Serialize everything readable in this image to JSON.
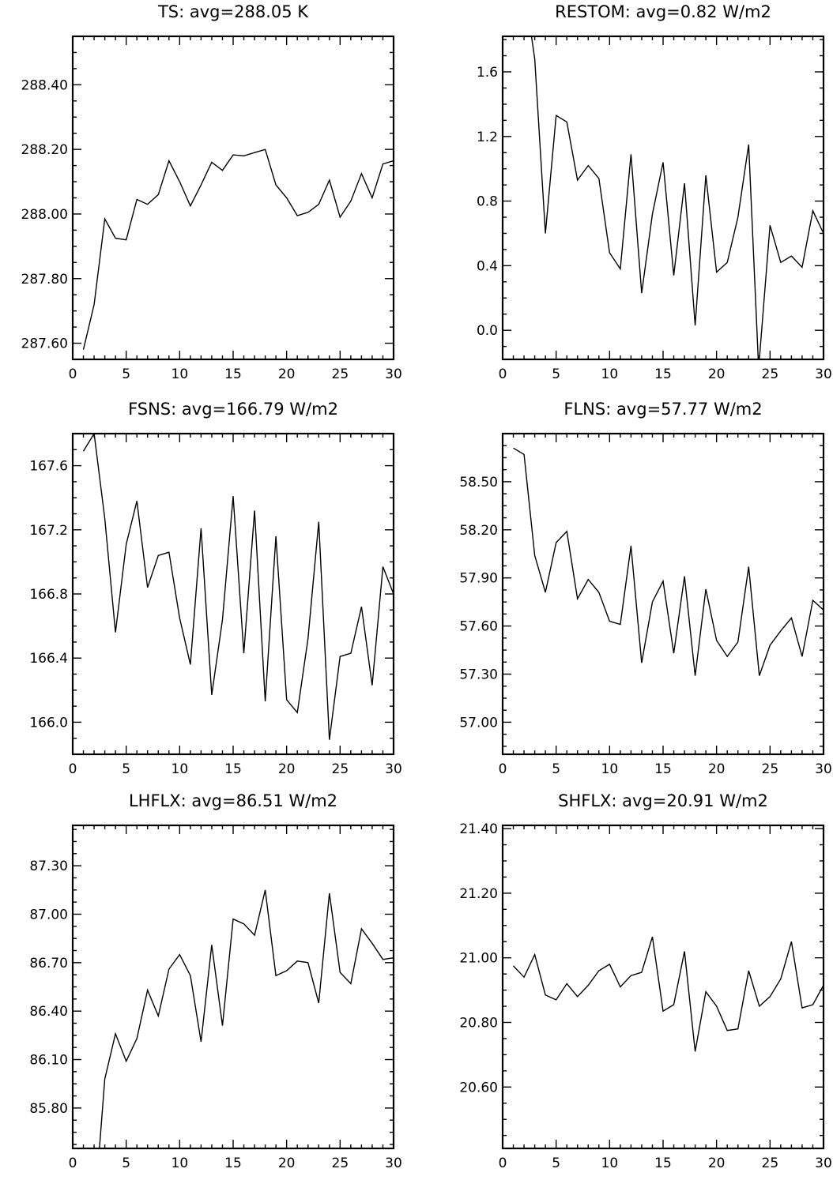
{
  "chart_data": [
    {
      "type": "line",
      "title": "TS: avg=288.05 K",
      "xlabel": "",
      "ylabel": "",
      "xlim": [
        0,
        30
      ],
      "ylim": [
        287.55,
        288.55
      ],
      "x_ticks": [
        0,
        5,
        10,
        15,
        20,
        25,
        30
      ],
      "x_tick_labels": [
        "0",
        "5",
        "10",
        "15",
        "20",
        "25",
        "30"
      ],
      "y_ticks": [
        287.6,
        287.8,
        288.0,
        288.2,
        288.4
      ],
      "y_tick_labels": [
        "287.60",
        "287.80",
        "288.00",
        "288.20",
        "288.40"
      ],
      "grid": false,
      "series": [
        {
          "x": [
            1,
            2,
            3,
            4,
            5,
            6,
            7,
            8,
            9,
            10,
            11,
            12,
            13,
            14,
            15,
            16,
            17,
            18,
            19,
            20,
            21,
            22,
            23,
            24,
            25,
            26,
            27,
            28,
            29,
            30
          ],
          "values": [
            287.58,
            287.72,
            287.985,
            287.925,
            287.92,
            288.045,
            288.03,
            288.06,
            288.165,
            288.1,
            288.025,
            288.09,
            288.16,
            288.135,
            288.183,
            288.18,
            288.19,
            288.2,
            288.09,
            288.05,
            287.995,
            288.005,
            288.03,
            288.105,
            287.99,
            288.04,
            288.125,
            288.05,
            288.155,
            288.165
          ]
        }
      ]
    },
    {
      "type": "line",
      "title": "RESTOM: avg=0.82 W/m2",
      "xlabel": "",
      "ylabel": "",
      "xlim": [
        0,
        30
      ],
      "ylim": [
        -0.18,
        1.82
      ],
      "x_ticks": [
        0,
        5,
        10,
        15,
        20,
        25,
        30
      ],
      "x_tick_labels": [
        "0",
        "5",
        "10",
        "15",
        "20",
        "25",
        "30"
      ],
      "y_ticks": [
        0.0,
        0.4,
        0.8,
        1.2,
        1.6
      ],
      "y_tick_labels": [
        "0.0",
        "0.4",
        "0.8",
        "1.2",
        "1.6"
      ],
      "grid": false,
      "series": [
        {
          "x": [
            2.7,
            3,
            4,
            5,
            6,
            7,
            8,
            9,
            10,
            11,
            12,
            13,
            14,
            15,
            16,
            17,
            18,
            19,
            20,
            21,
            22,
            23,
            23.9,
            24,
            25,
            26,
            27,
            28,
            29,
            30
          ],
          "values": [
            1.82,
            1.68,
            0.6,
            1.33,
            1.29,
            0.93,
            1.02,
            0.94,
            0.48,
            0.38,
            1.09,
            0.23,
            0.72,
            1.04,
            0.34,
            0.91,
            0.03,
            0.96,
            0.36,
            0.42,
            0.7,
            1.15,
            -0.18,
            -0.18,
            0.65,
            0.42,
            0.46,
            0.39,
            0.74,
            0.6
          ]
        }
      ]
    },
    {
      "type": "line",
      "title": "FSNS: avg=166.79 W/m2",
      "xlabel": "",
      "ylabel": "",
      "xlim": [
        0,
        30
      ],
      "ylim": [
        165.8,
        167.8
      ],
      "x_ticks": [
        0,
        5,
        10,
        15,
        20,
        25,
        30
      ],
      "x_tick_labels": [
        "0",
        "5",
        "10",
        "15",
        "20",
        "25",
        "30"
      ],
      "y_ticks": [
        166.0,
        166.4,
        166.8,
        167.2,
        167.6
      ],
      "y_tick_labels": [
        "166.0",
        "166.4",
        "166.8",
        "167.2",
        "167.6"
      ],
      "grid": false,
      "series": [
        {
          "x": [
            1,
            2,
            3,
            4,
            5,
            6,
            7,
            8,
            9,
            10,
            11,
            12,
            13,
            14,
            15,
            16,
            17,
            18,
            19,
            20,
            21,
            22,
            23,
            24,
            25,
            26,
            27,
            28,
            29,
            30
          ],
          "values": [
            167.69,
            167.8,
            167.27,
            166.56,
            167.11,
            167.38,
            166.84,
            167.04,
            167.06,
            166.65,
            166.36,
            167.21,
            166.17,
            166.64,
            167.41,
            166.43,
            167.32,
            166.13,
            167.16,
            166.14,
            166.06,
            166.52,
            167.25,
            165.89,
            166.41,
            166.43,
            166.72,
            166.23,
            166.97,
            166.8
          ]
        }
      ]
    },
    {
      "type": "line",
      "title": "FLNS: avg=57.77 W/m2",
      "xlabel": "",
      "ylabel": "",
      "xlim": [
        0,
        30
      ],
      "ylim": [
        56.8,
        58.8
      ],
      "x_ticks": [
        0,
        5,
        10,
        15,
        20,
        25,
        30
      ],
      "x_tick_labels": [
        "0",
        "5",
        "10",
        "15",
        "20",
        "25",
        "30"
      ],
      "y_ticks": [
        57.0,
        57.3,
        57.6,
        57.9,
        58.2,
        58.5
      ],
      "y_tick_labels": [
        "57.00",
        "57.30",
        "57.60",
        "57.90",
        "58.20",
        "58.50"
      ],
      "grid": false,
      "series": [
        {
          "x": [
            1,
            2,
            3,
            4,
            5,
            6,
            7,
            8,
            9,
            10,
            11,
            12,
            13,
            14,
            15,
            16,
            17,
            18,
            19,
            20,
            21,
            22,
            23,
            24,
            25,
            26,
            27,
            28,
            29,
            30
          ],
          "values": [
            58.71,
            58.67,
            58.04,
            57.81,
            58.12,
            58.19,
            57.77,
            57.89,
            57.81,
            57.63,
            57.61,
            58.1,
            57.37,
            57.75,
            57.88,
            57.43,
            57.91,
            57.29,
            57.83,
            57.51,
            57.41,
            57.5,
            57.97,
            57.29,
            57.48,
            57.57,
            57.65,
            57.41,
            57.76,
            57.7
          ]
        }
      ]
    },
    {
      "type": "line",
      "title": "LHFLX: avg=86.51 W/m2",
      "xlabel": "",
      "ylabel": "",
      "xlim": [
        0,
        30
      ],
      "ylim": [
        85.55,
        87.55
      ],
      "x_ticks": [
        0,
        5,
        10,
        15,
        20,
        25,
        30
      ],
      "x_tick_labels": [
        "0",
        "5",
        "10",
        "15",
        "20",
        "25",
        "30"
      ],
      "y_ticks": [
        85.8,
        86.1,
        86.4,
        86.7,
        87.0,
        87.3
      ],
      "y_tick_labels": [
        "85.80",
        "86.10",
        "86.40",
        "86.70",
        "87.00",
        "87.30"
      ],
      "grid": false,
      "series": [
        {
          "x": [
            2.5,
            3,
            4,
            5,
            6,
            7,
            8,
            9,
            10,
            11,
            12,
            13,
            14,
            15,
            16,
            17,
            18,
            19,
            20,
            21,
            22,
            23,
            24,
            25,
            26,
            27,
            28,
            29,
            30
          ],
          "values": [
            85.55,
            85.98,
            86.26,
            86.09,
            86.23,
            86.53,
            86.37,
            86.66,
            86.75,
            86.62,
            86.21,
            86.81,
            86.31,
            86.97,
            86.94,
            86.87,
            87.15,
            86.62,
            86.65,
            86.71,
            86.7,
            86.45,
            87.13,
            86.64,
            86.57,
            86.91,
            86.82,
            86.72,
            86.73
          ]
        }
      ]
    },
    {
      "type": "line",
      "title": "SHFLX: avg=20.91 W/m2",
      "xlabel": "",
      "ylabel": "",
      "xlim": [
        0,
        30
      ],
      "ylim": [
        20.41,
        21.41
      ],
      "x_ticks": [
        0,
        5,
        10,
        15,
        20,
        25,
        30
      ],
      "x_tick_labels": [
        "0",
        "5",
        "10",
        "15",
        "20",
        "25",
        "30"
      ],
      "y_ticks": [
        20.6,
        20.8,
        21.0,
        21.2,
        21.4
      ],
      "y_tick_labels": [
        "20.60",
        "20.80",
        "21.00",
        "21.20",
        "21.40"
      ],
      "grid": false,
      "series": [
        {
          "x": [
            1,
            2,
            3,
            4,
            5,
            6,
            7,
            8,
            9,
            10,
            11,
            12,
            13,
            14,
            15,
            16,
            17,
            18,
            19,
            20,
            21,
            22,
            23,
            24,
            25,
            26,
            27,
            28,
            29,
            30
          ],
          "values": [
            20.975,
            20.94,
            21.01,
            20.885,
            20.87,
            20.92,
            20.88,
            20.915,
            20.96,
            20.98,
            20.91,
            20.945,
            20.955,
            21.065,
            20.835,
            20.855,
            21.02,
            20.71,
            20.895,
            20.85,
            20.775,
            20.78,
            20.96,
            20.85,
            20.88,
            20.935,
            21.05,
            20.845,
            20.855,
            20.915
          ]
        }
      ]
    }
  ]
}
